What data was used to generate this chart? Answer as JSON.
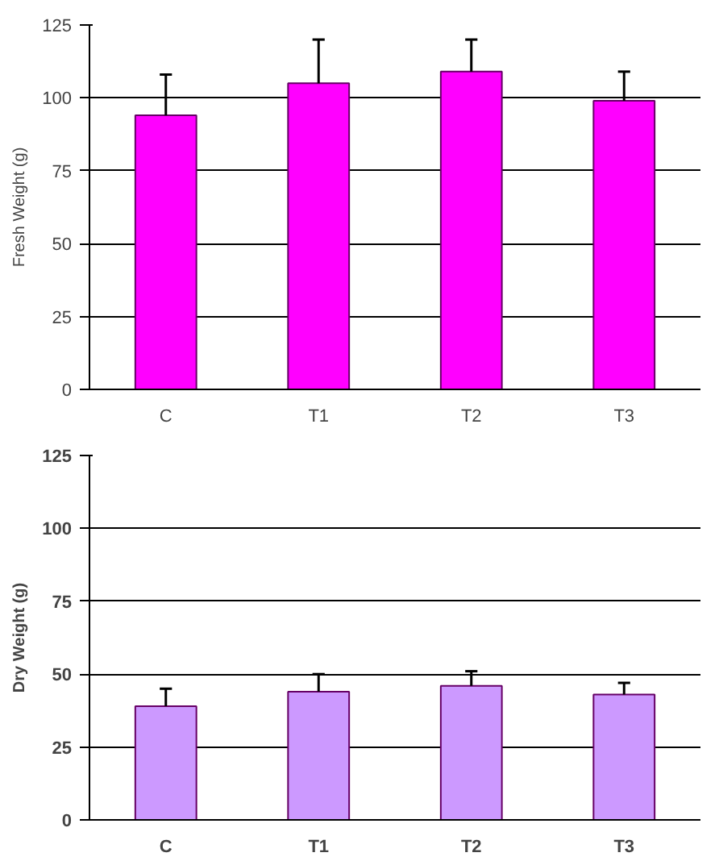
{
  "chart_data": [
    {
      "type": "bar",
      "categories": [
        "C",
        "T1",
        "T2",
        "T3"
      ],
      "values": [
        94,
        105,
        109,
        99
      ],
      "errors": [
        [
          94,
          108
        ],
        [
          105,
          120
        ],
        [
          109,
          120
        ],
        [
          99,
          109
        ]
      ],
      "color": "#ff00ff",
      "ylabel": "Fresh Weight (g)",
      "ylim": [
        0,
        125
      ],
      "yticks": [
        0,
        25,
        50,
        75,
        100,
        125
      ],
      "grid": "y"
    },
    {
      "type": "bar",
      "categories": [
        "C",
        "T1",
        "T2",
        "T3"
      ],
      "values": [
        39,
        44,
        46,
        43
      ],
      "errors": [
        [
          39,
          45
        ],
        [
          44,
          50
        ],
        [
          46,
          51
        ],
        [
          43,
          47
        ]
      ],
      "color": "#cc99ff",
      "ylabel": "Dry Weight (g)",
      "ylim": [
        0,
        125
      ],
      "yticks": [
        0,
        25,
        50,
        75,
        100,
        125
      ],
      "grid": "y"
    }
  ]
}
